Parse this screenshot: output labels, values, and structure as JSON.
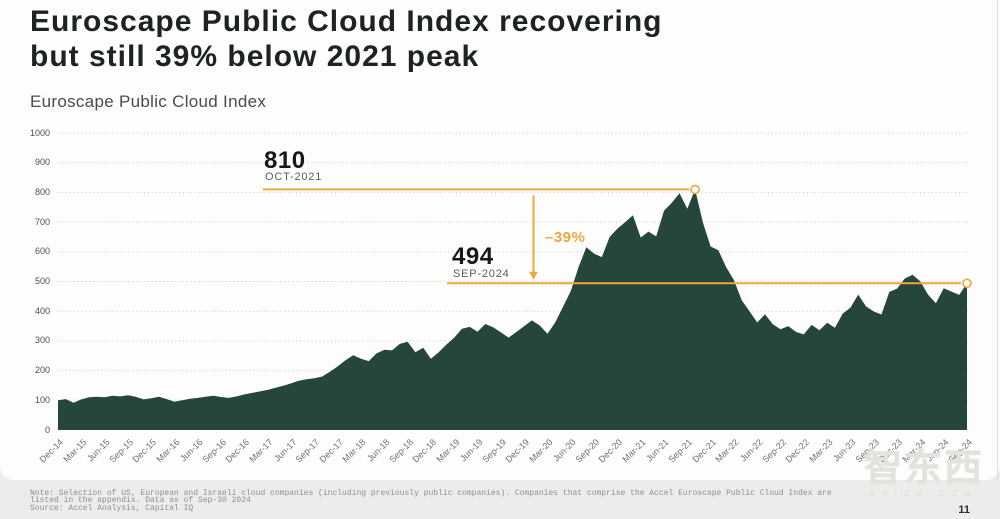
{
  "header": {
    "title_line1": "Euroscape Public Cloud Index recovering",
    "title_line2": "but still 39% below 2021 peak",
    "subtitle": "Euroscape Public Cloud Index"
  },
  "footer": {
    "note_line1": "Note: Selection of US, European and Israeli cloud companies (including previously public companies). Companies that comprise the Accel Euroscape Public Cloud Index are",
    "note_line2": "listed in the appendix. Data as of Sep-30 2024",
    "source": "Source: Accel Analysis, Capital IQ",
    "page_number": "11"
  },
  "watermark": {
    "text": "智东西",
    "subtext": "ZHIDX.COM"
  },
  "chart_data": {
    "type": "area",
    "title": "Euroscape Public Cloud Index",
    "x_tick_labels": [
      "Dec-14",
      "Mar-15",
      "Jun-15",
      "Sep-15",
      "Dec-15",
      "Mar-16",
      "Jun-16",
      "Sep-16",
      "Dec-16",
      "Mar-17",
      "Jun-17",
      "Sep-17",
      "Dec-17",
      "Mar-18",
      "Jun-18",
      "Sep-18",
      "Dec-18",
      "Mar-19",
      "Jun-19",
      "Sep-19",
      "Dec-19",
      "Mar-20",
      "Jun-20",
      "Sep-20",
      "Dec-20",
      "Mar-21",
      "Jun-21",
      "Sep-21",
      "Dec-21",
      "Mar-22",
      "Jun-22",
      "Sep-22",
      "Dec-22",
      "Mar-23",
      "Jun-23",
      "Sep-23",
      "Dec-23",
      "Mar-24",
      "Jun-24",
      "Sep-24"
    ],
    "values": [
      100,
      104,
      92,
      103,
      110,
      112,
      110,
      115,
      113,
      117,
      112,
      103,
      107,
      112,
      104,
      95,
      100,
      105,
      108,
      112,
      115,
      111,
      108,
      113,
      120,
      125,
      130,
      135,
      142,
      149,
      157,
      166,
      171,
      174,
      180,
      196,
      214,
      235,
      252,
      240,
      232,
      258,
      270,
      268,
      290,
      297,
      262,
      277,
      240,
      262,
      288,
      311,
      341,
      347,
      331,
      357,
      346,
      329,
      311,
      330,
      350,
      369,
      352,
      324,
      362,
      415,
      468,
      548,
      615,
      594,
      582,
      650,
      678,
      700,
      723,
      648,
      668,
      652,
      738,
      765,
      797,
      745,
      810,
      700,
      618,
      605,
      548,
      505,
      437,
      400,
      362,
      390,
      356,
      339,
      350,
      330,
      322,
      354,
      336,
      361,
      344,
      392,
      412,
      456,
      416,
      399,
      389,
      465,
      476,
      510,
      523,
      500,
      455,
      427,
      477,
      466,
      455,
      494
    ],
    "ylim": [
      0,
      1000
    ],
    "y_ticks": [
      0,
      100,
      200,
      300,
      400,
      500,
      600,
      700,
      800,
      900,
      1000
    ],
    "grid": "dotted horizontal",
    "legend": "none",
    "area_color": "#26463c",
    "accent_color": "#efa73c",
    "annotations": {
      "peak": {
        "value": 810,
        "value_label": "810",
        "date_label": "OCT-2021",
        "month_index": 82
      },
      "current": {
        "value": 494,
        "value_label": "494",
        "date_label": "SEP-2024",
        "month_index": 117
      },
      "drop": {
        "label": "–39%"
      }
    }
  }
}
